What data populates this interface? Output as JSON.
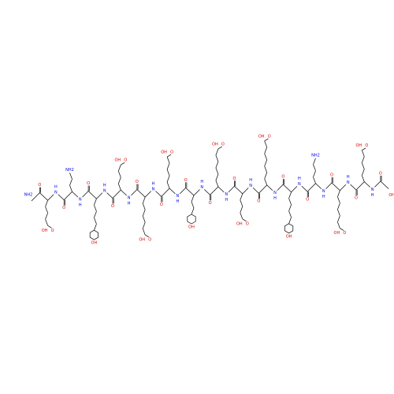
{
  "atoms": {
    "oxygen": "O",
    "nitrogen": "N",
    "hydrogen": "H",
    "hydroxyl": "OH",
    "amine": "NH2",
    "hydroxyl_left": "HO"
  }
}
